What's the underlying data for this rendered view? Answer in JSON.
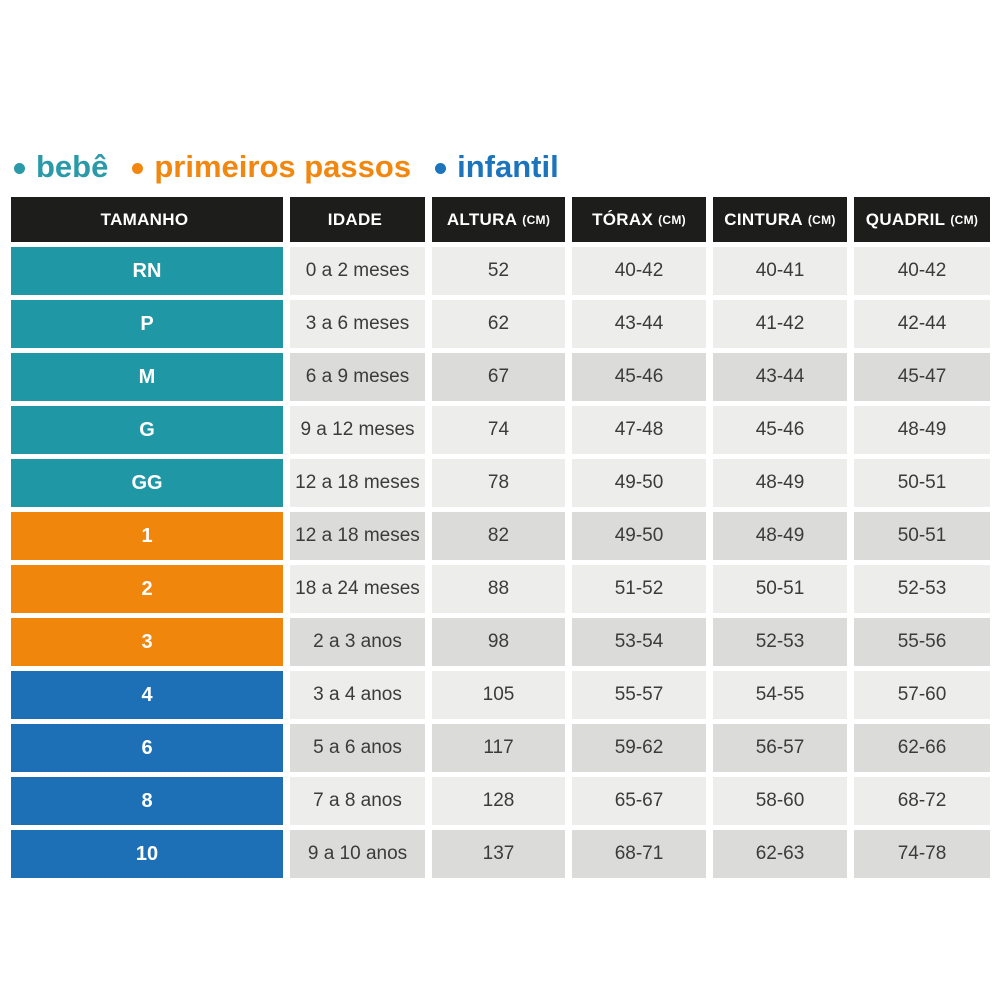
{
  "colors": {
    "bebe": "#1F97A4",
    "primeiros-passos": "#F0860B",
    "infantil": "#1D6FB6",
    "legend-bebe": "#2B9AA8",
    "legend-primeiros-passos": "#F1870F",
    "legend-infantil": "#1B74BC",
    "header_bg": "#1D1D1B",
    "cell_light": "#EDEDEB",
    "cell_shaded": "#DBDBD9"
  },
  "chart_data": {
    "type": "table",
    "title": "",
    "legend": [
      {
        "label": "bebê",
        "group": "bebe",
        "color": "#2B9AA8"
      },
      {
        "label": "primeiros passos",
        "group": "primeiros-passos",
        "color": "#F1870F"
      },
      {
        "label": "infantil",
        "group": "infantil",
        "color": "#1B74BC"
      }
    ],
    "columns": [
      {
        "label": "TAMANHO",
        "unit": ""
      },
      {
        "label": "IDADE",
        "unit": ""
      },
      {
        "label": "ALTURA",
        "unit": "(CM)"
      },
      {
        "label": "TÓRAX",
        "unit": "(CM)"
      },
      {
        "label": "CINTURA",
        "unit": "(CM)"
      },
      {
        "label": "QUADRIL",
        "unit": "(CM)"
      }
    ],
    "rows": [
      {
        "size": "RN",
        "group": "bebe",
        "idade": "0 a 2 meses",
        "altura": "52",
        "torax": "40-42",
        "cintura": "40-41",
        "quadril": "40-42",
        "shaded": false
      },
      {
        "size": "P",
        "group": "bebe",
        "idade": "3 a 6 meses",
        "altura": "62",
        "torax": "43-44",
        "cintura": "41-42",
        "quadril": "42-44",
        "shaded": false
      },
      {
        "size": "M",
        "group": "bebe",
        "idade": "6 a 9 meses",
        "altura": "67",
        "torax": "45-46",
        "cintura": "43-44",
        "quadril": "45-47",
        "shaded": true
      },
      {
        "size": "G",
        "group": "bebe",
        "idade": "9 a 12 meses",
        "altura": "74",
        "torax": "47-48",
        "cintura": "45-46",
        "quadril": "48-49",
        "shaded": false
      },
      {
        "size": "GG",
        "group": "bebe",
        "idade": "12 a 18 meses",
        "altura": "78",
        "torax": "49-50",
        "cintura": "48-49",
        "quadril": "50-51",
        "shaded": false
      },
      {
        "size": "1",
        "group": "primeiros-passos",
        "idade": "12 a 18 meses",
        "altura": "82",
        "torax": "49-50",
        "cintura": "48-49",
        "quadril": "50-51",
        "shaded": true
      },
      {
        "size": "2",
        "group": "primeiros-passos",
        "idade": "18 a 24 meses",
        "altura": "88",
        "torax": "51-52",
        "cintura": "50-51",
        "quadril": "52-53",
        "shaded": false
      },
      {
        "size": "3",
        "group": "primeiros-passos",
        "idade": "2 a 3 anos",
        "altura": "98",
        "torax": "53-54",
        "cintura": "52-53",
        "quadril": "55-56",
        "shaded": true
      },
      {
        "size": "4",
        "group": "infantil",
        "idade": "3 a 4 anos",
        "altura": "105",
        "torax": "55-57",
        "cintura": "54-55",
        "quadril": "57-60",
        "shaded": false
      },
      {
        "size": "6",
        "group": "infantil",
        "idade": "5 a 6 anos",
        "altura": "117",
        "torax": "59-62",
        "cintura": "56-57",
        "quadril": "62-66",
        "shaded": true
      },
      {
        "size": "8",
        "group": "infantil",
        "idade": "7 a 8 anos",
        "altura": "128",
        "torax": "65-67",
        "cintura": "58-60",
        "quadril": "68-72",
        "shaded": false
      },
      {
        "size": "10",
        "group": "infantil",
        "idade": "9 a 10 anos",
        "altura": "137",
        "torax": "68-71",
        "cintura": "62-63",
        "quadril": "74-78",
        "shaded": true
      }
    ]
  }
}
